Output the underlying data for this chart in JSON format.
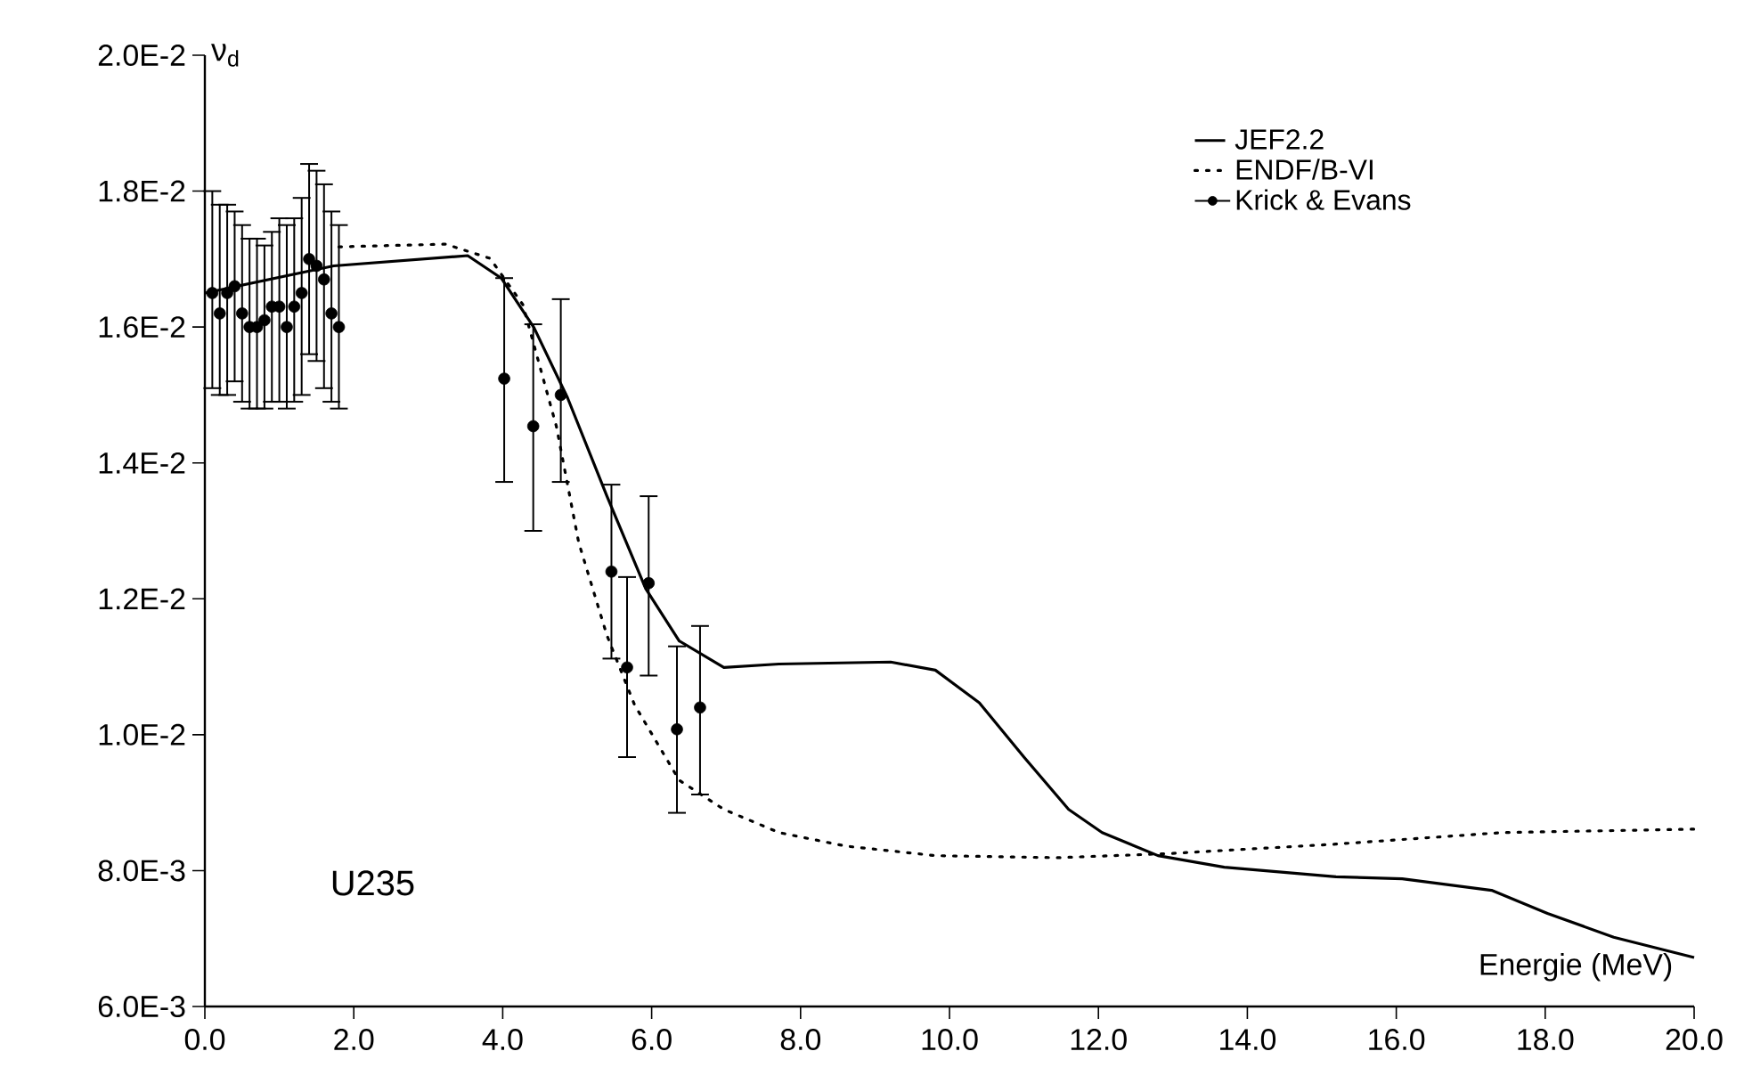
{
  "chart_data": {
    "type": "line",
    "ylabel": "ν$_{d}$",
    "xlabel": "Energie (MeV)",
    "annotations": [
      "U235"
    ],
    "xlim": [
      0,
      20
    ],
    "ylim": [
      0.006,
      0.02
    ],
    "xticks": [
      {
        "value": 0,
        "label": "0.0"
      },
      {
        "value": 2,
        "label": "2.0"
      },
      {
        "value": 4,
        "label": "4.0"
      },
      {
        "value": 6,
        "label": "6.0"
      },
      {
        "value": 8,
        "label": "8.0"
      },
      {
        "value": 10,
        "label": "10.0"
      },
      {
        "value": 12,
        "label": "12.0"
      },
      {
        "value": 14,
        "label": "14.0"
      },
      {
        "value": 16,
        "label": "16.0"
      },
      {
        "value": 18,
        "label": "18.0"
      },
      {
        "value": 20,
        "label": "20.0"
      }
    ],
    "yticks": [
      {
        "value": 0.006,
        "label": "6.0E-3"
      },
      {
        "value": 0.008,
        "label": "8.0E-3"
      },
      {
        "value": 0.01,
        "label": "1.0E-2"
      },
      {
        "value": 0.012,
        "label": "1.2E-2"
      },
      {
        "value": 0.014,
        "label": "1.4E-2"
      },
      {
        "value": 0.016,
        "label": "1.6E-2"
      },
      {
        "value": 0.018,
        "label": "1.8E-2"
      },
      {
        "value": 0.02,
        "label": "2.0E-2"
      }
    ],
    "grid": false,
    "legend": "top right",
    "series": [
      {
        "name": "JEF2.2",
        "color": "#000000",
        "line_style": "solid",
        "marker": "none",
        "x": [
          0,
          1.73,
          3.53,
          3.98,
          4.42,
          4.87,
          5.4,
          5.92,
          6.37,
          6.97,
          7.71,
          9.21,
          9.81,
          10.4,
          11.0,
          11.6,
          12.05,
          12.8,
          13.69,
          15.19,
          16.08,
          17.28,
          18.03,
          18.92,
          20
        ],
        "values": [
          0.0165,
          0.0169,
          0.01705,
          0.01672,
          0.01599,
          0.01496,
          0.01351,
          0.01215,
          0.01138,
          0.01099,
          0.01104,
          0.01107,
          0.01095,
          0.01047,
          0.00967,
          0.0089,
          0.00856,
          0.00822,
          0.00805,
          0.00791,
          0.00788,
          0.00771,
          0.00737,
          0.00702,
          0.00672
        ]
      },
      {
        "name": "ENDF/B-VI",
        "color": "#000000",
        "line_style": "dotted",
        "marker": "none",
        "x": [
          1.8,
          3.23,
          3.83,
          4.27,
          4.72,
          5.02,
          5.4,
          5.77,
          6.37,
          6.97,
          7.71,
          8.61,
          9.81,
          11.45,
          12.94,
          15.19,
          17.43,
          20
        ],
        "values": [
          0.01718,
          0.01722,
          0.01701,
          0.01633,
          0.01454,
          0.01283,
          0.01146,
          0.01044,
          0.00933,
          0.0089,
          0.00856,
          0.00836,
          0.00822,
          0.00819,
          0.00825,
          0.00839,
          0.00856,
          0.00861
        ]
      },
      {
        "name": "Krick & Evans",
        "color": "#000000",
        "type": "scatter",
        "marker": "circle",
        "x": [
          0.1,
          0.2,
          0.3,
          0.4,
          0.5,
          0.6,
          0.7,
          0.8,
          0.9,
          1.0,
          1.1,
          1.2,
          1.3,
          1.4,
          1.5,
          1.6,
          1.7,
          1.8,
          4.02,
          4.41,
          4.78,
          5.46,
          5.67,
          5.96,
          6.34,
          6.65
        ],
        "values": [
          0.0165,
          0.0162,
          0.0165,
          0.0166,
          0.0162,
          0.016,
          0.016,
          0.0161,
          0.0163,
          0.0163,
          0.016,
          0.0163,
          0.0165,
          0.017,
          0.0169,
          0.0167,
          0.0162,
          0.016,
          0.01524,
          0.01454,
          0.015,
          0.0124,
          0.01099,
          0.01223,
          0.01008,
          0.0104
        ],
        "errors": [
          [
            0.0151,
            0.018
          ],
          [
            0.015,
            0.0178
          ],
          [
            0.015,
            0.0178
          ],
          [
            0.0152,
            0.0177
          ],
          [
            0.0149,
            0.0175
          ],
          [
            0.0148,
            0.0173
          ],
          [
            0.0148,
            0.0173
          ],
          [
            0.0148,
            0.0172
          ],
          [
            0.0149,
            0.0174
          ],
          [
            0.0149,
            0.0176
          ],
          [
            0.0148,
            0.0175
          ],
          [
            0.0149,
            0.0176
          ],
          [
            0.015,
            0.0179
          ],
          [
            0.0156,
            0.0184
          ],
          [
            0.0155,
            0.0183
          ],
          [
            0.0151,
            0.0181
          ],
          [
            0.0149,
            0.0177
          ],
          [
            0.0148,
            0.0175
          ],
          [
            0.01372,
            0.01672
          ],
          [
            0.013,
            0.01604
          ],
          [
            0.01372,
            0.01641
          ],
          [
            0.01112,
            0.01368
          ],
          [
            0.00967,
            0.01232
          ],
          [
            0.01087,
            0.01351
          ],
          [
            0.00885,
            0.0113
          ],
          [
            0.00912,
            0.0116
          ]
        ]
      }
    ]
  }
}
